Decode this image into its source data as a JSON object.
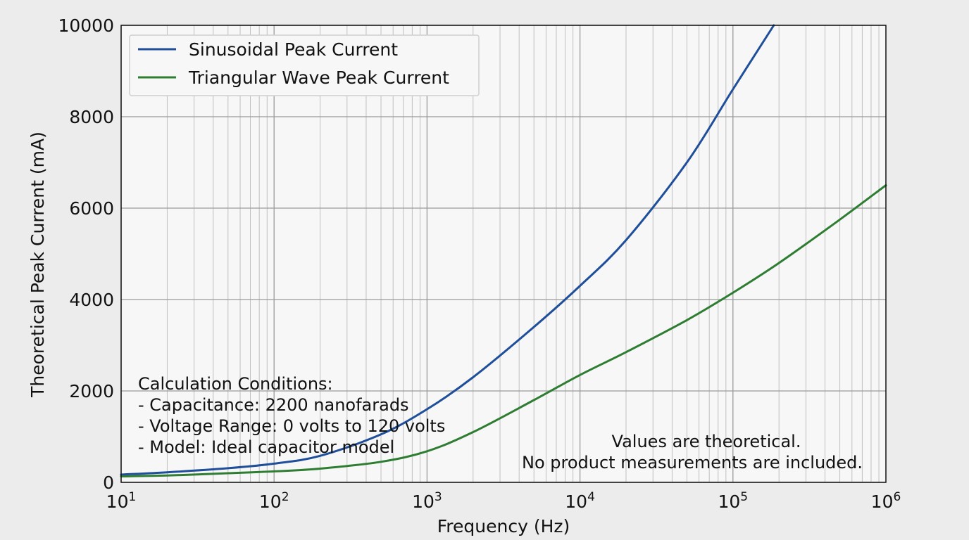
{
  "chart_data": {
    "type": "line",
    "xscale": "log",
    "xlim": [
      10,
      1000000
    ],
    "ylim": [
      0,
      10000
    ],
    "xlabel": "Frequency (Hz)",
    "ylabel": "Theoretical Peak Current (mA)",
    "x_ticks": [
      {
        "value": 10,
        "base": "10",
        "exp": "1"
      },
      {
        "value": 100,
        "base": "10",
        "exp": "2"
      },
      {
        "value": 1000,
        "base": "10",
        "exp": "3"
      },
      {
        "value": 10000,
        "base": "10",
        "exp": "4"
      },
      {
        "value": 100000,
        "base": "10",
        "exp": "5"
      },
      {
        "value": 1000000,
        "base": "10",
        "exp": "6"
      }
    ],
    "y_ticks": [
      "0",
      "2000",
      "4000",
      "6000",
      "8000",
      "10000"
    ],
    "grid": true,
    "legend_position": "top-left",
    "series": [
      {
        "name": "Sinusoidal Peak Current",
        "color": "#1f4e9a",
        "x": [
          10,
          20,
          50,
          100,
          200,
          500,
          1000,
          2000,
          5000,
          10000,
          20000,
          50000,
          100000,
          185000
        ],
        "y": [
          170,
          220,
          310,
          410,
          580,
          1050,
          1600,
          2300,
          3400,
          4300,
          5300,
          7000,
          8600,
          10000
        ]
      },
      {
        "name": "Triangular Wave Peak Current",
        "color": "#2e7d32",
        "x": [
          10,
          20,
          50,
          100,
          200,
          500,
          1000,
          2000,
          5000,
          10000,
          20000,
          50000,
          100000,
          200000,
          500000,
          1000000
        ],
        "y": [
          130,
          150,
          200,
          240,
          300,
          450,
          680,
          1100,
          1800,
          2350,
          2850,
          3550,
          4150,
          4800,
          5750,
          6500
        ]
      }
    ],
    "annotations": {
      "conditions": [
        "Calculation Conditions:",
        "- Capacitance: 2200 nanofarads",
        "- Voltage Range: 0 volts to 120 volts",
        "- Model: Ideal capacitor model"
      ],
      "note": [
        "Values are theoretical.",
        "No product measurements are included."
      ]
    }
  }
}
